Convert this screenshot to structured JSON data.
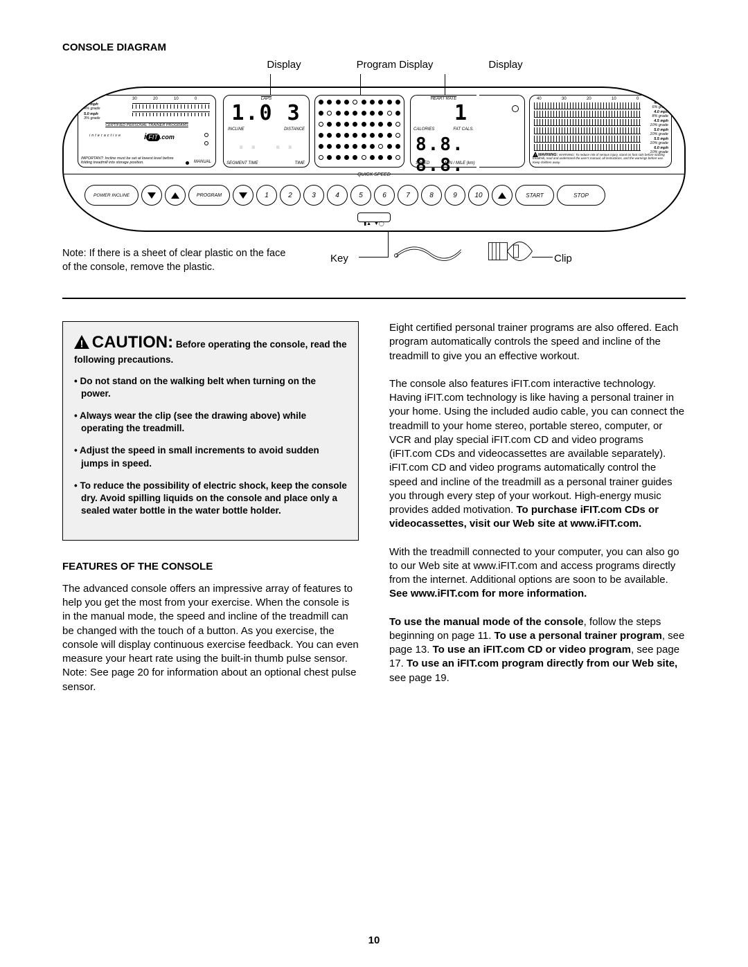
{
  "page_number": "10",
  "section_title": "CONSOLE DIAGRAM",
  "top_display_labels": [
    "Display",
    "Program Display",
    "Display"
  ],
  "note_text": "Note: If there is a sheet of clear plastic on the face of the console, remove the plastic.",
  "callouts": {
    "key": "Key",
    "clip": "Clip"
  },
  "console": {
    "left_panel": {
      "ticks": [
        "30",
        "20",
        "10",
        "0"
      ],
      "speeds": [
        {
          "mph": "6.0 mph",
          "grade": "4% grade"
        },
        {
          "mph": "5.0 mph",
          "grade": "3% grade"
        }
      ],
      "programs_label": "CERTIFIED PERSONAL TRAINER PROGRAMS",
      "interactive": "interactive",
      "brand": "iFIT.com",
      "important": "IMPORTANT: Incline must be set at lowest level before folding treadmill into storage position.",
      "manual": "MANUAL"
    },
    "display1": {
      "laps": "LAPS",
      "value_top": "1.0 3",
      "incline": "INCLINE",
      "distance": "DISTANCE",
      "value_bot": "",
      "segment_time": "SEGMENT TIME",
      "time": "TIME"
    },
    "program_display": {
      "rows": [
        [
          1,
          1,
          1,
          1,
          0,
          1,
          1,
          1,
          1,
          1
        ],
        [
          1,
          0,
          1,
          1,
          1,
          1,
          1,
          1,
          0,
          1
        ],
        [
          0,
          1,
          1,
          1,
          1,
          1,
          1,
          1,
          1,
          0
        ],
        [
          1,
          1,
          1,
          1,
          1,
          1,
          1,
          1,
          1,
          0
        ],
        [
          1,
          1,
          1,
          1,
          1,
          1,
          1,
          0,
          1,
          1
        ],
        [
          0,
          1,
          1,
          1,
          1,
          0,
          1,
          1,
          1,
          0
        ]
      ]
    },
    "display2": {
      "heart_rate": "HEART RATE",
      "hr_value": "1",
      "calories": "CALORIES",
      "fat_cals": "FAT CALS.",
      "main_value": "8.8.  8.8.",
      "speed": "SPEED",
      "min_mile": "MIN / MILE (km)"
    },
    "right_panel": {
      "ticks": [
        "40",
        "30",
        "20",
        "10",
        "0"
      ],
      "speeds": [
        {
          "mph": "4.0 mph",
          "grade": "6% grade"
        },
        {
          "mph": "4.0 mph",
          "grade": "8% grade"
        },
        {
          "mph": "4.5 mph",
          "grade": "10% grade"
        },
        {
          "mph": "5.0 mph",
          "grade": "10% grade"
        },
        {
          "mph": "5.5 mph",
          "grade": "10% grade"
        },
        {
          "mph": "6.0 mph",
          "grade": "10% grade"
        }
      ],
      "warning": "WARNING: To reduce risk of serious injury, stand on foot rails before starting treadmill, read and understand the user's manual, all instructions, and the warnings before use. Keep children away.",
      "warning_word": "WARNING:"
    },
    "button_row": {
      "power_incline": "POWER INCLINE",
      "program": "PROGRAM",
      "quick_speed": "QUICK SPEED",
      "numbers": [
        "1",
        "2",
        "3",
        "4",
        "5",
        "6",
        "7",
        "8",
        "9",
        "10"
      ],
      "start": "START",
      "stop": "STOP"
    }
  },
  "caution": {
    "big": "CAUTION:",
    "lead": " Before operating the console, read the following precautions.",
    "items": [
      "Do not stand on the walking belt when turning on the power.",
      "Always wear the clip (see the drawing above) while operating the treadmill.",
      "Adjust the speed in small increments to avoid sudden jumps in speed.",
      "To reduce the possibility of electric shock, keep the console dry. Avoid spilling liquids on the console and place only a sealed water bottle in the water bottle holder."
    ]
  },
  "features": {
    "heading": "FEATURES OF THE CONSOLE",
    "p1": "The advanced console offers an impressive array of features to help you get the most from your exercise. When the console is in the manual mode, the speed and incline of the treadmill can be changed with the touch of a button. As you exercise, the console will display continuous exercise feedback. You can even measure your heart rate using the built-in thumb pulse sensor. Note: See page 20 for information about an optional chest pulse sensor."
  },
  "right_column": {
    "p1": "Eight certified personal trainer programs are also offered. Each program automatically controls the speed and incline of the treadmill to give you an effective workout.",
    "p2a": "The console also features iFIT.com interactive technology. Having iFIT.com technology is like having a personal trainer in your home. Using the included audio cable, you can connect the treadmill to your home stereo, portable stereo, computer, or VCR and play special iFIT.com CD and video programs (iFIT.com CDs and videocassettes are available separately). iFIT.com CD and video programs automatically control the speed and incline of the treadmill as a personal trainer guides you through every step of your workout. High-energy music provides added motivation. ",
    "p2b": "To purchase iFIT.com CDs or videocassettes, visit our Web site at www.iFIT.com.",
    "p3a": "With the treadmill connected to your computer, you can also go to our Web site at www.iFIT.com and access programs directly from the internet. Additional options are soon to be available. ",
    "p3b": "See www.iFIT.com for more information.",
    "p4_parts": [
      {
        "t": "To use the manual mode of the console",
        "b": true
      },
      {
        "t": ", follow the steps beginning on page 11. ",
        "b": false
      },
      {
        "t": "To use a personal trainer program",
        "b": true
      },
      {
        "t": ", see page 13. ",
        "b": false
      },
      {
        "t": "To use an iFIT.com CD or video program",
        "b": true
      },
      {
        "t": ", see page 17. ",
        "b": false
      },
      {
        "t": "To use an iFIT.com program directly from our Web site,",
        "b": true
      },
      {
        "t": " see page 19.",
        "b": false
      }
    ]
  }
}
